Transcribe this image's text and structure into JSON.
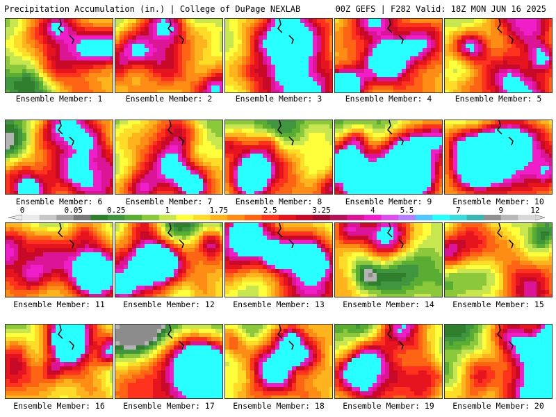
{
  "header": {
    "title_left": "Precipitation Accumulation (in.) | College of DuPage NEXLAB",
    "title_right": "00Z GEFS | F282 Valid: 18Z MON JUN 16 2025"
  },
  "legend": {
    "tick_labels": [
      "0",
      "0.05",
      "0.25",
      "1",
      "1.75",
      "2.5",
      "3.25",
      "4",
      "5.5",
      "7",
      "9",
      "12"
    ],
    "colors": [
      "#ebebeb",
      "#c8c8c8",
      "#a0a0a0",
      "#787878",
      "#2f7f2f",
      "#3f963f",
      "#5aad33",
      "#8cc83c",
      "#c8e650",
      "#ffff3c",
      "#ffdc28",
      "#ffb41e",
      "#ff8c14",
      "#ff6414",
      "#ff321e",
      "#e6141e",
      "#c80a28",
      "#a00a32",
      "#b4145a",
      "#dc1496",
      "#f01ec8",
      "#dc50f0",
      "#b482ff",
      "#50c8ff",
      "#28ffff",
      "#3cdcdc",
      "#3cb4b4",
      "#909090",
      "#b8b8b8",
      "#d8d8d8"
    ]
  },
  "panels": [
    {
      "label": "Ensemble Member: 1"
    },
    {
      "label": "Ensemble Member: 2"
    },
    {
      "label": "Ensemble Member: 3"
    },
    {
      "label": "Ensemble Member: 4"
    },
    {
      "label": "Ensemble Member: 5"
    },
    {
      "label": "Ensemble Member: 6"
    },
    {
      "label": "Ensemble Member: 7"
    },
    {
      "label": "Ensemble Member: 8"
    },
    {
      "label": "Ensemble Member: 9"
    },
    {
      "label": "Ensemble Member: 10"
    },
    {
      "label": "Ensemble Member: 11"
    },
    {
      "label": "Ensemble Member: 12"
    },
    {
      "label": "Ensemble Member: 13"
    },
    {
      "label": "Ensemble Member: 14"
    },
    {
      "label": "Ensemble Member: 15"
    },
    {
      "label": "Ensemble Member: 16"
    },
    {
      "label": "Ensemble Member: 17"
    },
    {
      "label": "Ensemble Member: 18"
    },
    {
      "label": "Ensemble Member: 19"
    },
    {
      "label": "Ensemble Member: 20"
    }
  ]
}
